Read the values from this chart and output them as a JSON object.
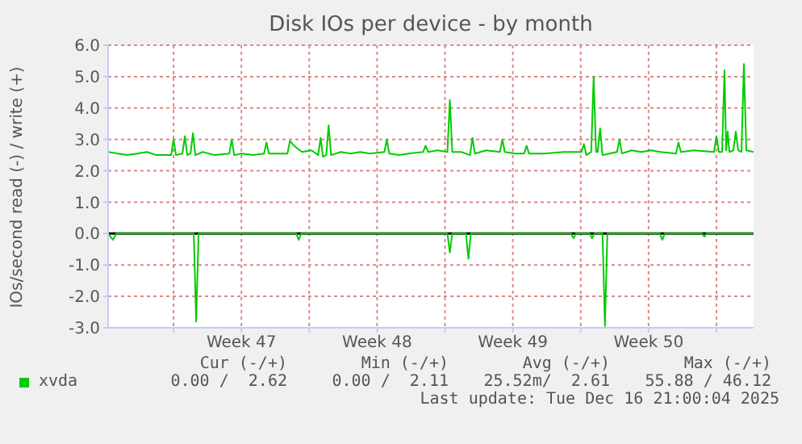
{
  "chart_data": {
    "type": "line",
    "title": "Disk IOs per device - by month",
    "ylabel": "IOs/second read (-) / write (+)",
    "xlim": [
      "2025-11-13T15:00",
      "2025-12-16T22:00"
    ],
    "xticks": [
      {
        "value": "2025-11-17",
        "label": null
      },
      {
        "value": "2025-11-20T12:00",
        "label": "Week 47"
      },
      {
        "value": "2025-11-24",
        "label": null
      },
      {
        "value": "2025-11-27T12:00",
        "label": "Week 48"
      },
      {
        "value": "2025-12-01",
        "label": null
      },
      {
        "value": "2025-12-04T12:00",
        "label": "Week 49"
      },
      {
        "value": "2025-12-08",
        "label": null
      },
      {
        "value": "2025-12-11T12:00",
        "label": "Week 50"
      },
      {
        "value": "2025-12-15",
        "label": null
      }
    ],
    "ylim": [
      -3,
      6
    ],
    "yticks": [
      {
        "value": -3,
        "label": "-3.0"
      },
      {
        "value": -2,
        "label": "-2.0"
      },
      {
        "value": -1,
        "label": "-1.0"
      },
      {
        "value": 0,
        "label": "0.0"
      },
      {
        "value": 1,
        "label": "1.0"
      },
      {
        "value": 2,
        "label": "2.0"
      },
      {
        "value": 3,
        "label": "3.0"
      },
      {
        "value": 4,
        "label": "4.0"
      },
      {
        "value": 5,
        "label": "5.0"
      },
      {
        "value": 6,
        "label": "6.0"
      }
    ],
    "grid": true,
    "legend": "bottom",
    "marker": "none",
    "line_style": "solid",
    "ref_lines": [
      {
        "axis": "y",
        "value": 0,
        "color": "#000000"
      }
    ],
    "annotations": [
      "Cur (-/+)",
      "Min (-/+)",
      "Avg (-/+)",
      "Max (-/+)",
      "0.00 /  2.62",
      "0.00 /  2.11",
      "25.52m/  2.61",
      "55.88 / 46.12",
      "Last update: Tue Dec 16 21:00:04 2025"
    ],
    "series": [
      {
        "name": "xvda",
        "color": "#00cc00",
        "x": [
          "2025-11-13T15:00",
          "2025-11-14T03:00",
          "2025-11-14T15:00",
          "2025-11-15T03:00",
          "2025-11-15T15:00",
          "2025-11-16T03:00",
          "2025-11-16T21:00",
          "2025-11-17T00:00",
          "2025-11-17T03:00",
          "2025-11-17T11:00",
          "2025-11-17T14:00",
          "2025-11-17T17:00",
          "2025-11-17T21:00",
          "2025-11-18T00:00",
          "2025-11-18T03:00",
          "2025-11-18T12:00",
          "2025-11-19T03:00",
          "2025-11-19T21:00",
          "2025-11-20T00:00",
          "2025-11-20T03:00",
          "2025-11-20T12:00",
          "2025-11-21T03:00",
          "2025-11-21T16:00",
          "2025-11-21T19:00",
          "2025-11-21T22:00",
          "2025-11-22T21:00",
          "2025-11-23T00:00",
          "2025-11-23T05:00",
          "2025-11-23T15:00",
          "2025-11-24T03:00",
          "2025-11-24T11:00",
          "2025-11-24T14:00",
          "2025-11-24T17:00",
          "2025-11-24T21:00",
          "2025-11-25T00:00",
          "2025-11-25T03:00",
          "2025-11-25T15:00",
          "2025-11-26T03:00",
          "2025-11-26T15:00",
          "2025-11-27T03:00",
          "2025-11-27T21:00",
          "2025-11-28T00:00",
          "2025-11-28T03:00",
          "2025-11-28T15:00",
          "2025-11-29T03:00",
          "2025-11-29T21:00",
          "2025-11-30T00:00",
          "2025-11-30T03:00",
          "2025-11-30T15:00",
          "2025-12-01T03:00",
          "2025-12-01T06:00",
          "2025-12-01T09:00",
          "2025-12-01T20:00",
          "2025-12-02T07:00",
          "2025-12-02T10:00",
          "2025-12-02T13:00",
          "2025-12-03T03:00",
          "2025-12-03T20:00",
          "2025-12-03T23:00",
          "2025-12-04T02:00",
          "2025-12-04T15:00",
          "2025-12-05T02:00",
          "2025-12-05T05:00",
          "2025-12-05T08:00",
          "2025-12-06T03:00",
          "2025-12-07T03:00",
          "2025-12-08T01:00",
          "2025-12-08T04:00",
          "2025-12-08T07:00",
          "2025-12-08T13:00",
          "2025-12-08T16:00",
          "2025-12-08T19:00",
          "2025-12-08T21:00",
          "2025-12-09T00:00",
          "2025-12-09T03:00",
          "2025-12-09T21:00",
          "2025-12-10T00:00",
          "2025-12-10T03:00",
          "2025-12-10T15:00",
          "2025-12-11T03:00",
          "2025-12-11T15:00",
          "2025-12-12T03:00",
          "2025-12-12T22:00",
          "2025-12-13T01:00",
          "2025-12-13T04:00",
          "2025-12-13T20:00",
          "2025-12-14T21:00",
          "2025-12-15T00:00",
          "2025-12-15T03:00",
          "2025-12-15T07:00",
          "2025-12-15T10:00",
          "2025-12-15T12:00",
          "2025-12-15T14:00",
          "2025-12-15T16:00",
          "2025-12-15T21:00",
          "2025-12-16T00:00",
          "2025-12-16T03:00",
          "2025-12-16T07:00",
          "2025-12-16T10:00",
          "2025-12-16T13:00",
          "2025-12-16T22:00"
        ],
        "values": [
          2.6,
          2.55,
          2.5,
          2.55,
          2.6,
          2.5,
          2.5,
          3.0,
          2.5,
          2.55,
          3.1,
          2.5,
          2.55,
          3.2,
          2.5,
          2.6,
          2.5,
          2.55,
          3.0,
          2.5,
          2.55,
          2.5,
          2.55,
          2.9,
          2.55,
          2.55,
          2.95,
          2.8,
          2.6,
          2.65,
          2.5,
          3.05,
          2.45,
          2.5,
          3.45,
          2.5,
          2.6,
          2.55,
          2.6,
          2.55,
          2.6,
          3.0,
          2.55,
          2.5,
          2.55,
          2.6,
          2.8,
          2.6,
          2.65,
          2.6,
          4.25,
          2.6,
          2.6,
          2.5,
          3.05,
          2.55,
          2.65,
          2.6,
          3.0,
          2.6,
          2.55,
          2.55,
          2.8,
          2.55,
          2.55,
          2.6,
          2.6,
          2.85,
          2.5,
          2.6,
          5.0,
          2.6,
          2.6,
          3.35,
          2.5,
          2.6,
          3.0,
          2.55,
          2.65,
          2.6,
          2.65,
          2.6,
          2.55,
          2.9,
          2.6,
          2.65,
          2.6,
          3.1,
          2.6,
          2.6,
          5.2,
          2.65,
          3.25,
          2.6,
          2.65,
          3.25,
          2.65,
          2.6,
          5.4,
          2.65,
          2.6
        ]
      },
      {
        "color": "#00cc00",
        "x": [
          "2025-11-13T15:00",
          "2025-11-13T21:00",
          "2025-11-14T01:00",
          "2025-11-18T01:00",
          "2025-11-18T04:00",
          "2025-11-18T07:00",
          "2025-11-23T08:00",
          "2025-11-23T11:00",
          "2025-11-23T14:00",
          "2025-12-01T03:00",
          "2025-12-01T06:00",
          "2025-12-01T09:00",
          "2025-12-02T02:00",
          "2025-12-02T05:00",
          "2025-12-02T08:00",
          "2025-12-07T12:00",
          "2025-12-07T15:00",
          "2025-12-07T18:00",
          "2025-12-08T11:00",
          "2025-12-08T14:00",
          "2025-12-08T17:00",
          "2025-12-09T03:00",
          "2025-12-09T06:00",
          "2025-12-09T09:00",
          "2025-12-12T02:00",
          "2025-12-12T05:00",
          "2025-12-12T08:00",
          "2025-12-14T06:00",
          "2025-12-14T09:00",
          "2025-12-14T12:00",
          "2025-12-16T22:00"
        ],
        "values": [
          0,
          -0.2,
          0,
          0,
          -2.8,
          0,
          0,
          -0.2,
          0,
          0,
          -0.6,
          0,
          0,
          -0.8,
          0,
          0,
          -0.15,
          0,
          0,
          -0.15,
          0,
          0,
          -2.95,
          0,
          0,
          -0.2,
          0,
          0,
          -0.1,
          0,
          0
        ]
      }
    ]
  }
}
